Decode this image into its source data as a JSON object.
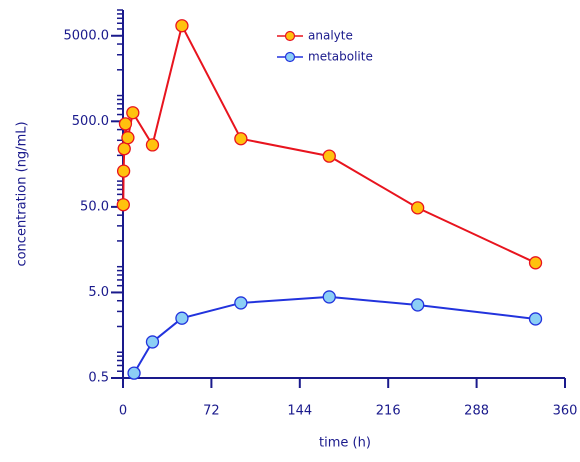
{
  "chart_data": {
    "type": "line",
    "x_label": "time (h)",
    "y_label": "concentration (ng/mL)",
    "series": [
      {
        "name": "analyte",
        "color": "#e8141e",
        "marker_fill": "#ffc20e",
        "x": [
          0.25,
          0.5,
          1,
          2,
          4,
          8,
          24,
          48,
          96,
          168,
          240,
          336
        ],
        "values": [
          53,
          131,
          239,
          467,
          322,
          630,
          265,
          6550,
          313,
          196,
          48.7,
          11.1
        ]
      },
      {
        "name": "metabolite",
        "color": "#2233dd",
        "marker_fill": "#8ccff5",
        "x": [
          9,
          24,
          48,
          96,
          168,
          240,
          336
        ],
        "values": [
          0.57,
          1.32,
          2.5,
          3.77,
          4.43,
          3.57,
          2.45
        ]
      }
    ],
    "xlim": [
      0,
      360
    ],
    "xticks": [
      0,
      72,
      144,
      216,
      288,
      360
    ],
    "ylim": [
      0.5,
      10000
    ],
    "log_y": true,
    "yticks": [
      {
        "value": 0.5,
        "label": "0.5"
      },
      {
        "value": 5,
        "label": "5.0"
      },
      {
        "value": 50,
        "label": "50.0"
      },
      {
        "value": 500,
        "label": "500.0"
      },
      {
        "value": 5000,
        "label": "5000.0"
      }
    ],
    "y_minor_ticks": [
      0.6,
      0.7,
      0.8,
      0.9,
      1,
      2,
      3,
      4,
      6,
      7,
      8,
      9,
      10,
      20,
      30,
      40,
      60,
      70,
      80,
      90,
      100,
      200,
      300,
      400,
      600,
      700,
      800,
      900,
      1000,
      2000,
      3000,
      4000,
      6000,
      7000,
      8000,
      9000,
      10000
    ],
    "axis_color": "#1a1a8c",
    "legend": "upper center"
  }
}
